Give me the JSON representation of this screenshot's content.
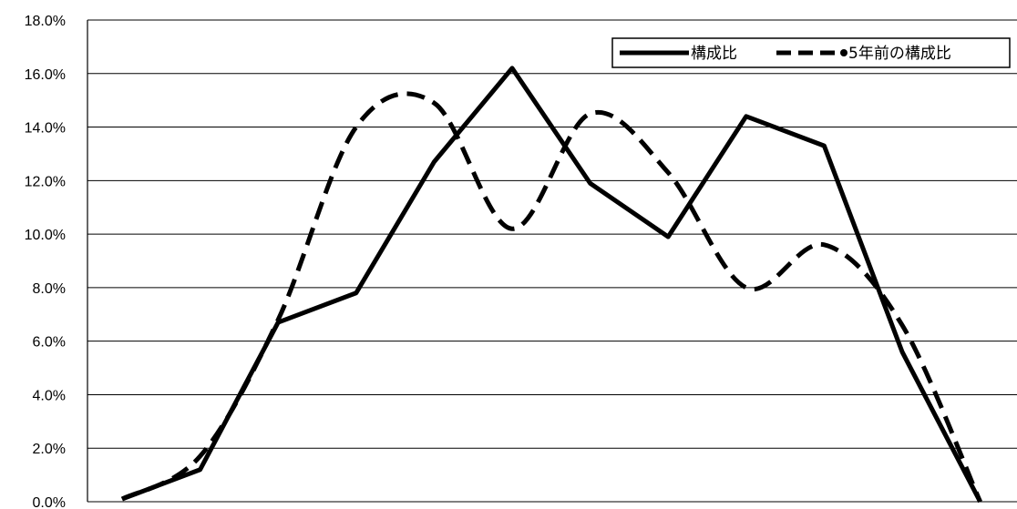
{
  "chart_data": {
    "type": "line",
    "title": "",
    "xlabel": "",
    "ylabel": "",
    "ylim": [
      0,
      18
    ],
    "y_ticks": [
      "0.0%",
      "2.0%",
      "4.0%",
      "6.0%",
      "8.0%",
      "10.0%",
      "12.0%",
      "14.0%",
      "16.0%",
      "18.0%"
    ],
    "grid": true,
    "legend_position": "top-right",
    "x": [
      1,
      2,
      3,
      4,
      5,
      6,
      7,
      8,
      9,
      10,
      11,
      12
    ],
    "series": [
      {
        "name": "構成比",
        "style": "solid",
        "color": "#000000",
        "values": [
          0.1,
          1.2,
          6.7,
          7.8,
          12.7,
          16.2,
          11.9,
          9.9,
          14.4,
          13.3,
          5.6,
          0.0
        ]
      },
      {
        "name": "5年前の構成比",
        "style": "dashed",
        "color": "#000000",
        "values": [
          0.1,
          1.7,
          6.8,
          14.0,
          14.9,
          10.2,
          14.5,
          12.3,
          8.0,
          9.6,
          6.6,
          0.0
        ]
      }
    ]
  }
}
